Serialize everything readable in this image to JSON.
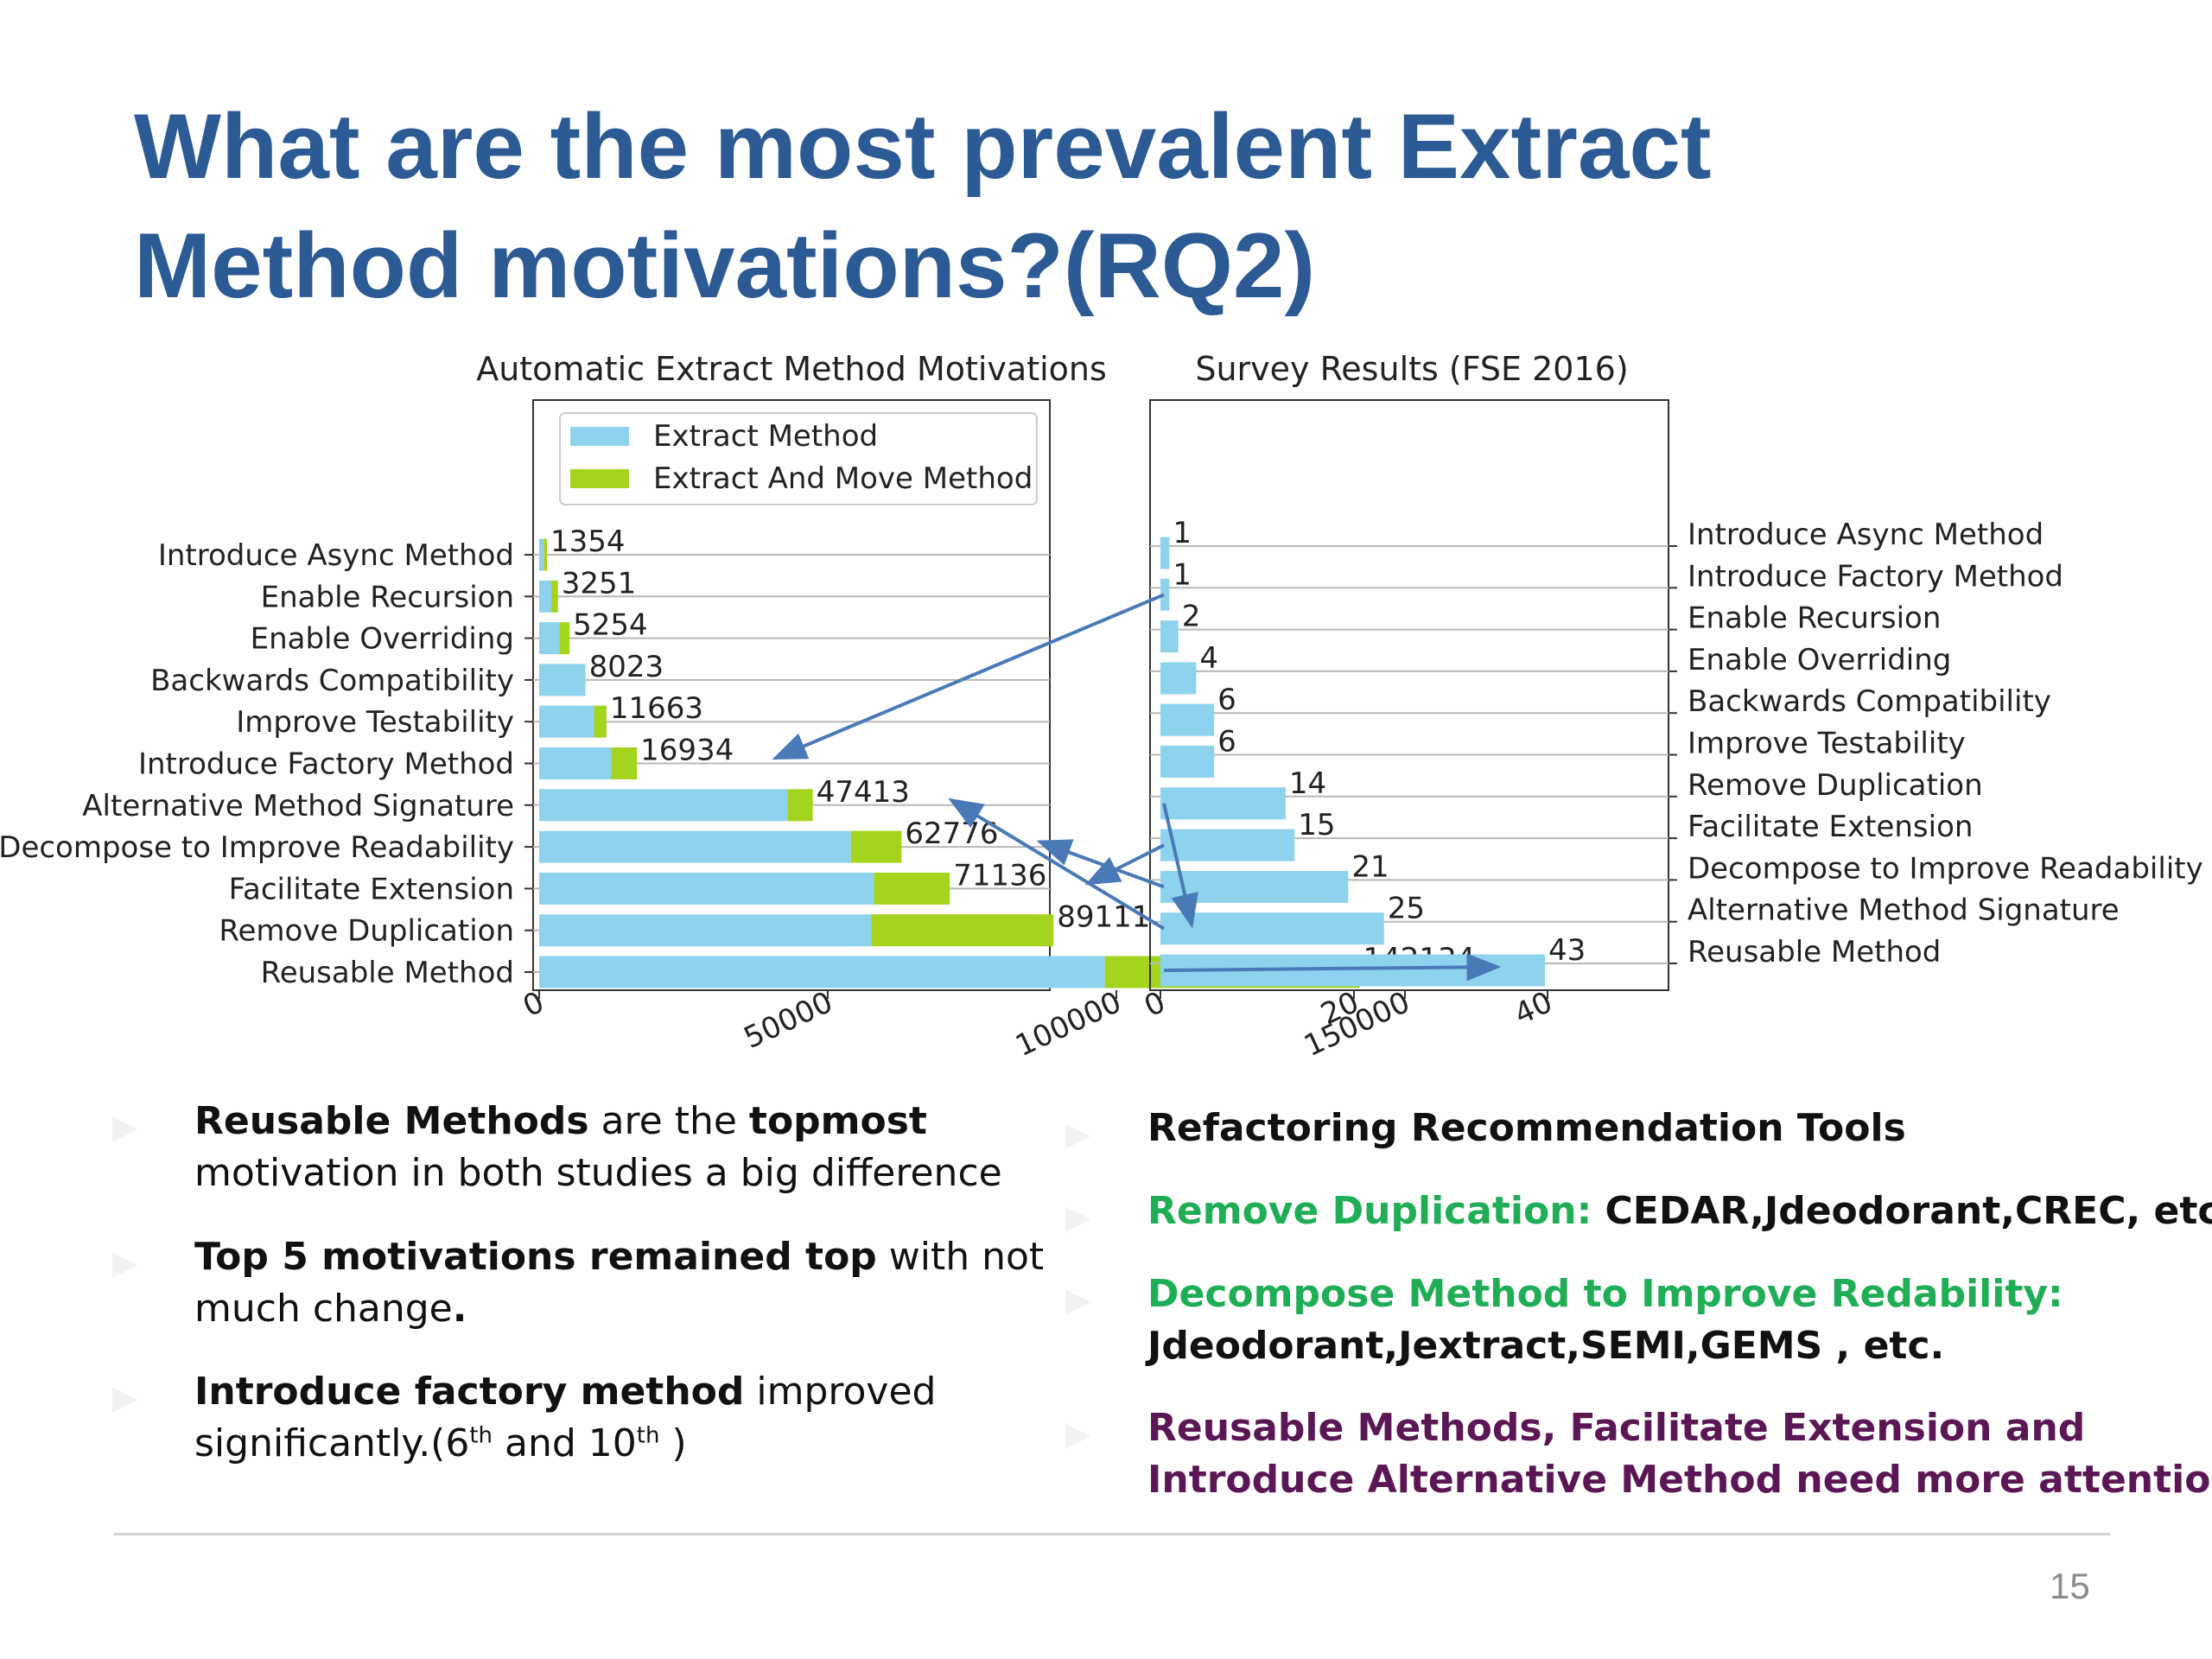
{
  "slide": {
    "title_line1": "What are the most prevalent Extract",
    "title_line2": "Method motivations?(RQ2)",
    "page_number": "15",
    "colors": {
      "title": "#2c5a95",
      "extract_method": "#8ed3ee",
      "extract_and_move": "#a5d41f",
      "arrow": "#4a79b8",
      "green_text": "#1fae55",
      "purple_text": "#5b1755"
    }
  },
  "chart_data": [
    {
      "type": "bar",
      "orientation": "horizontal",
      "stacked": true,
      "title": "Automatic Extract Method Motivations",
      "categories": [
        "Introduce Async Method",
        "Enable  Recursion",
        "Enable Overriding",
        "Backwards Compatibility",
        "Improve Testability",
        "Introduce Factory Method",
        "Alternative Method Signature",
        "Decompose to Improve Readability",
        "Facilitate Extension",
        "Remove Duplication",
        "Reusable Method"
      ],
      "series": [
        {
          "name": "Extract Method",
          "color": "#8ed3ee",
          "values": [
            800,
            2100,
            3500,
            8023,
            9500,
            12500,
            43000,
            54000,
            58000,
            57500,
            98000
          ]
        },
        {
          "name": "Extract And Move Method",
          "color": "#a5d41f",
          "values": [
            554,
            1151,
            1754,
            0,
            2163,
            4434,
            4413,
            8776,
            13136,
            31611,
            44134
          ]
        }
      ],
      "totals": [
        "1354",
        "3251",
        "5254",
        "8023",
        "11663",
        "16934",
        "47413",
        "62776",
        "71136",
        "89111",
        "142134"
      ],
      "xlim": [
        0,
        150000
      ],
      "xticks": [
        "0",
        "50000",
        "100000",
        "150000"
      ],
      "legend": "top",
      "grid": "horizontal"
    },
    {
      "type": "bar",
      "orientation": "horizontal",
      "title": "Survey Results (FSE 2016)",
      "categories": [
        "Introduce Async Method",
        "Introduce Factory Method",
        "Enable Recursion",
        "Enable Overriding",
        "Backwards Compatibility",
        "Improve Testability",
        "Remove Duplication",
        "Facilitate Extension",
        "Decompose to Improve Readability",
        "Alternative Method Signature",
        "Reusable Method"
      ],
      "values": [
        1,
        1,
        2,
        4,
        6,
        6,
        14,
        15,
        21,
        25,
        43
      ],
      "value_labels": [
        "1",
        "1",
        "2",
        "4",
        "6",
        "6",
        "14",
        "15",
        "21",
        "25",
        "43"
      ],
      "color": "#8ed3ee",
      "xlim": [
        0,
        50
      ],
      "xticks": [
        "0",
        "20",
        "40"
      ],
      "grid": "horizontal"
    }
  ],
  "arrows": [
    {
      "from_survey": "Introduce Factory Method",
      "to_auto": "Introduce Factory Method"
    },
    {
      "from_survey": "Remove Duplication",
      "to_auto": "Remove Duplication"
    },
    {
      "from_survey": "Facilitate Extension",
      "to_auto": "Facilitate Extension"
    },
    {
      "from_survey": "Decompose to Improve Readability",
      "to_auto": "Decompose to Improve Readability"
    },
    {
      "from_survey": "Alternative Method Signature",
      "to_auto": "Alternative Method Signature"
    },
    {
      "from_survey": "Reusable Method",
      "to_auto": "Reusable Method"
    }
  ],
  "left_bullets": [
    {
      "l1_b1": "Reusable Methods",
      "l1_t1": " are the ",
      "l1_b2": "topmost",
      "l2": "motivation in both studies a big difference"
    },
    {
      "l1_b1": "Top 5  motivations remained top",
      "l1_t1": " with not",
      "l2": "much change",
      "l2_b": "."
    },
    {
      "l1_b1": "Introduce factory method",
      "l1_t1": " improved",
      "l2_a": "significantly.(6",
      "sup1": "th",
      "l2_b": " and 10",
      "sup2": "th",
      "l2_c": " )"
    }
  ],
  "right_bullets": [
    {
      "text": "Refactoring Recommendation Tools"
    },
    {
      "label": "Remove Duplication:",
      "text": " CEDAR,Jdeodorant,CREC, etc."
    },
    {
      "label": "Decompose Method to Improve Redability:",
      "text": "Jdeodorant,Jextract,SEMI,GEMS , etc."
    },
    {
      "l1": "Reusable Methods, Facilitate Extension and",
      "l2": "Introduce Alternative Method need more attention."
    }
  ],
  "bullet_marker": "▶"
}
